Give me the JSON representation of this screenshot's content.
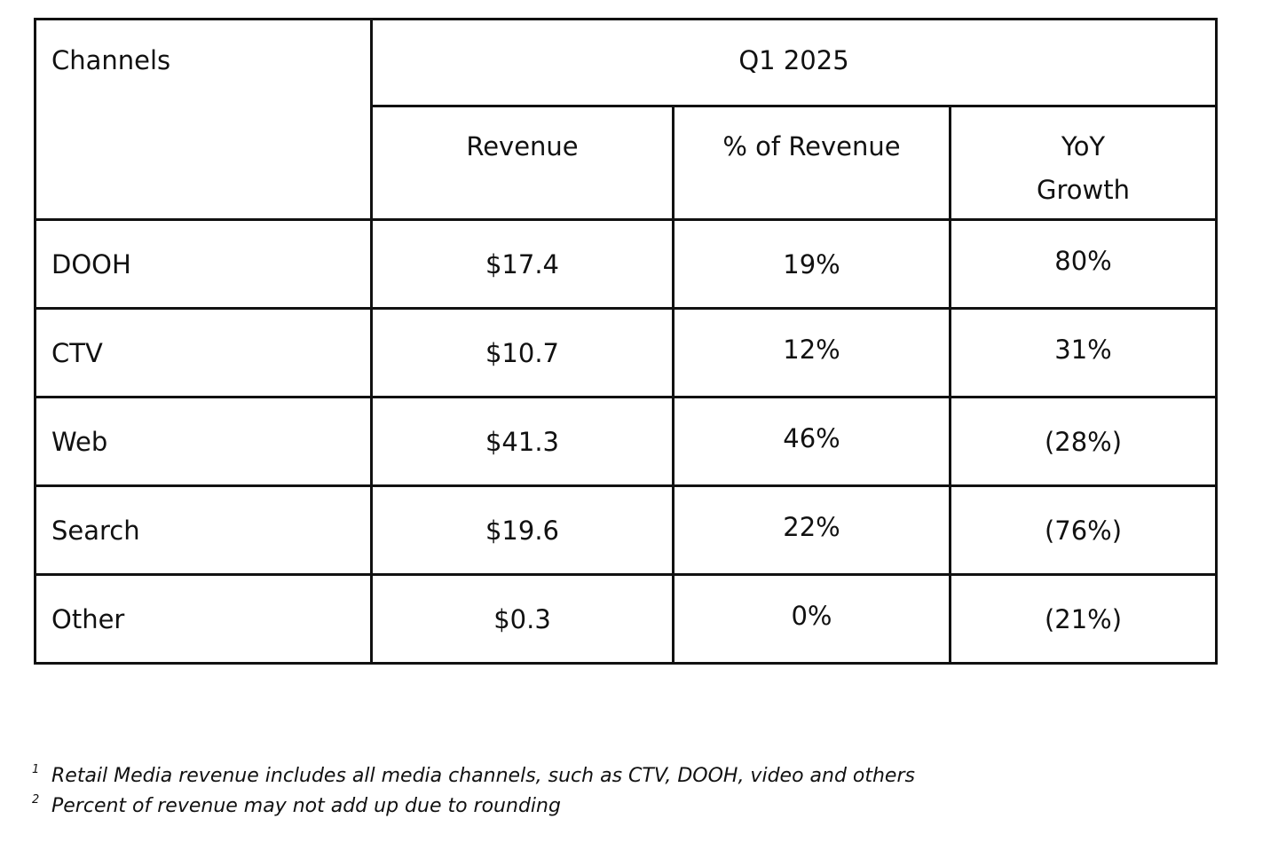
{
  "table": {
    "header": {
      "channels": "Channels",
      "period": "Q1 2025",
      "revenue": "Revenue",
      "pct_revenue": "% of Revenue",
      "yoy_line1": "YoY",
      "yoy_line2": "Growth"
    },
    "rows": [
      {
        "channel": "DOOH",
        "revenue": "$17.4",
        "pct": "19%",
        "yoy": "80%"
      },
      {
        "channel": "CTV",
        "revenue": "$10.7",
        "pct": "12%",
        "yoy": "31%"
      },
      {
        "channel": "Web",
        "revenue": "$41.3",
        "pct": "46%",
        "yoy": "(28%)"
      },
      {
        "channel": "Search",
        "revenue": "$19.6",
        "pct": "22%",
        "yoy": "(76%)"
      },
      {
        "channel": "Other",
        "revenue": "$0.3",
        "pct": "0%",
        "yoy": "(21%)"
      }
    ]
  },
  "footnotes": [
    {
      "mark": "1",
      "text": "Retail Media revenue includes all media channels, such as CTV, DOOH, video and others"
    },
    {
      "mark": "2",
      "text": "Percent of revenue may not add up due to rounding"
    }
  ]
}
